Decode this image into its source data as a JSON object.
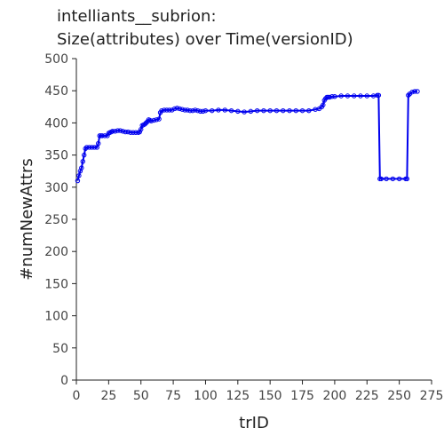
{
  "chart_data": {
    "type": "line",
    "title_lines": [
      "intelliants__subrion:",
      "Size(attributes) over Time(versionID)"
    ],
    "xlabel": "trID",
    "ylabel": "#numNewAttrs",
    "xlim": [
      0,
      275
    ],
    "ylim": [
      0,
      500
    ],
    "x_ticks": [
      0,
      25,
      50,
      75,
      100,
      125,
      150,
      175,
      200,
      225,
      250,
      275
    ],
    "y_ticks": [
      0,
      50,
      100,
      150,
      200,
      250,
      300,
      350,
      400,
      450,
      500
    ],
    "grid": false,
    "series": [
      {
        "color": "#0000ee",
        "marker": "circle",
        "x": [
          1,
          2,
          3,
          4,
          5,
          6,
          7,
          8,
          10,
          12,
          14,
          16,
          17,
          18,
          19,
          20,
          22,
          24,
          25,
          26,
          27,
          28,
          30,
          32,
          34,
          36,
          38,
          40,
          42,
          44,
          46,
          48,
          49,
          50,
          51,
          52,
          53,
          54,
          55,
          56,
          57,
          58,
          60,
          62,
          64,
          65,
          66,
          68,
          70,
          72,
          74,
          76,
          78,
          80,
          82,
          84,
          86,
          88,
          90,
          92,
          94,
          96,
          98,
          100,
          105,
          110,
          115,
          120,
          125,
          130,
          135,
          140,
          145,
          150,
          155,
          160,
          165,
          170,
          175,
          180,
          185,
          188,
          190,
          191,
          192,
          193,
          194,
          195,
          196,
          198,
          200,
          205,
          210,
          215,
          220,
          225,
          230,
          233,
          234,
          235,
          236,
          240,
          245,
          250,
          255,
          256,
          257,
          258,
          260,
          262,
          264
        ],
        "y": [
          310,
          318,
          325,
          330,
          340,
          350,
          360,
          362,
          362,
          362,
          362,
          362,
          368,
          380,
          380,
          380,
          380,
          380,
          384,
          385,
          386,
          387,
          387,
          388,
          388,
          387,
          386,
          386,
          385,
          385,
          385,
          385,
          386,
          390,
          396,
          397,
          398,
          400,
          402,
          405,
          404,
          403,
          404,
          405,
          406,
          416,
          419,
          420,
          420,
          420,
          420,
          422,
          423,
          422,
          421,
          420,
          420,
          419,
          419,
          420,
          419,
          418,
          418,
          419,
          419,
          420,
          420,
          419,
          418,
          417,
          418,
          419,
          419,
          419,
          419,
          419,
          419,
          419,
          419,
          419,
          421,
          422,
          425,
          428,
          435,
          438,
          440,
          440,
          440,
          441,
          441,
          442,
          442,
          442,
          442,
          442,
          442,
          443,
          443,
          313,
          313,
          313,
          313,
          313,
          313,
          313,
          443,
          445,
          448,
          449,
          449
        ]
      }
    ]
  }
}
